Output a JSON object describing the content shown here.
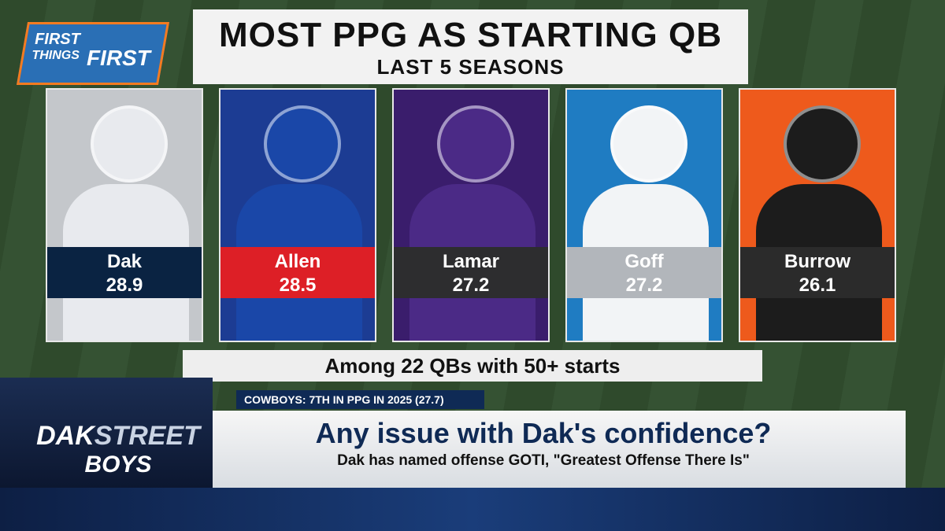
{
  "logo": {
    "line1": "FIRST",
    "line2": "THINGS",
    "line3": "FIRST"
  },
  "header": {
    "title": "MOST PPG AS STARTING QB",
    "subtitle": "LAST 5 SEASONS"
  },
  "players": [
    {
      "name": "Dak",
      "ppg": 28.9
    },
    {
      "name": "Allen",
      "ppg": 28.5
    },
    {
      "name": "Lamar",
      "ppg": 27.2
    },
    {
      "name": "Goff",
      "ppg": 27.2
    },
    {
      "name": "Burrow",
      "ppg": 26.1
    }
  ],
  "footnote": "Among 22 QBs with 50+ starts",
  "ticker": "COWBOYS: 7TH IN PPG IN 2025 (27.7)",
  "show_logo": {
    "line1": "DAK",
    "line2": "STREET",
    "line3": "BOYS"
  },
  "lower_third": {
    "headline": "Any issue with Dak's confidence?",
    "subhead": "Dak has named offense GOTI, \"Greatest Offense There Is\""
  }
}
